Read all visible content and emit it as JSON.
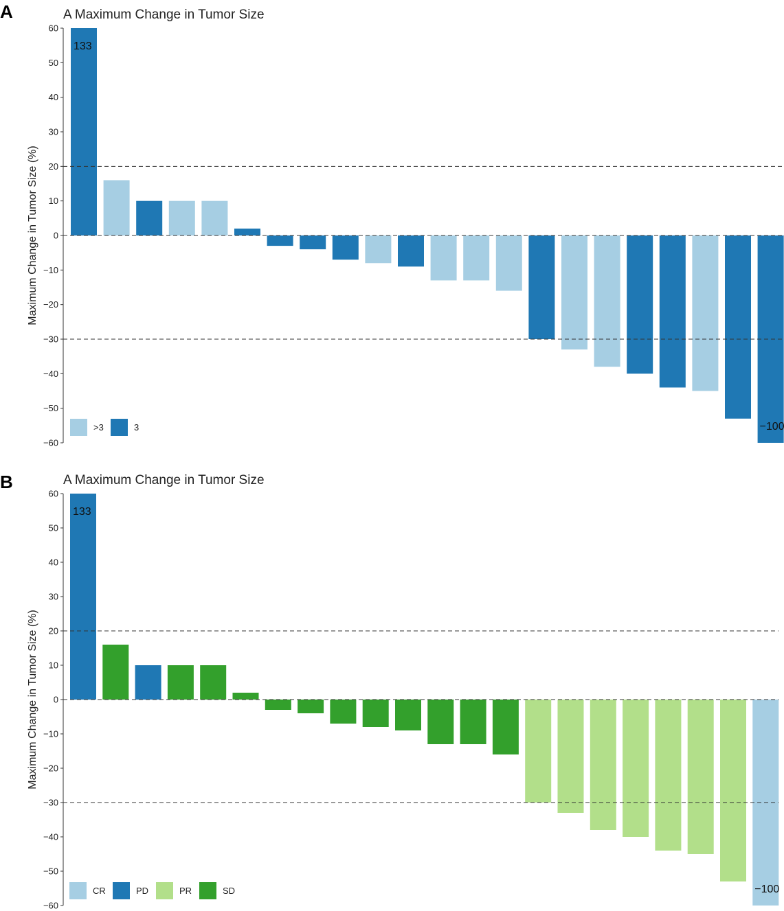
{
  "chart_data": [
    {
      "type": "bar",
      "panel_label": "A",
      "title": "A Maximum Change in Tumor Size",
      "ylabel": "Maximum Change in Tumor Size (%)",
      "xlabel": "",
      "ylim": [
        -60,
        60
      ],
      "yticks": [
        60,
        50,
        40,
        30,
        20,
        10,
        0,
        -10,
        -20,
        -30,
        -40,
        -50,
        -60
      ],
      "reference_lines": [
        20,
        0,
        -30
      ],
      "values": [
        60,
        16,
        10,
        10,
        10,
        2,
        -3,
        -4,
        -7,
        -8,
        -9,
        -13,
        -13,
        -16,
        -30,
        -33,
        -38,
        -40,
        -44,
        -45,
        -53,
        -60
      ],
      "groups": [
        "3",
        ">3",
        "3",
        ">3",
        ">3",
        "3",
        "3",
        "3",
        "3",
        ">3",
        "3",
        ">3",
        ">3",
        ">3",
        "3",
        ">3",
        ">3",
        "3",
        "3",
        ">3",
        "3",
        "3"
      ],
      "legend": [
        {
          "label": ">3",
          "color": "#a6cee3"
        },
        {
          "label": "3",
          "color": "#1f78b4"
        }
      ],
      "annotations": [
        {
          "bar_index": 0,
          "text": "133"
        },
        {
          "bar_index": 21,
          "text": "−100"
        }
      ]
    },
    {
      "type": "bar",
      "panel_label": "B",
      "title": "A Maximum Change in Tumor Size",
      "ylabel": "Maximum Change in Tumor Size (%)",
      "xlabel": "",
      "ylim": [
        -60,
        60
      ],
      "yticks": [
        60,
        50,
        40,
        30,
        20,
        10,
        0,
        -10,
        -20,
        -30,
        -40,
        -50,
        -60
      ],
      "reference_lines": [
        20,
        0,
        -30
      ],
      "values": [
        60,
        16,
        10,
        10,
        10,
        2,
        -3,
        -4,
        -7,
        -8,
        -9,
        -13,
        -13,
        -16,
        -30,
        -33,
        -38,
        -40,
        -44,
        -45,
        -53,
        -60
      ],
      "groups": [
        "PD",
        "SD",
        "PD",
        "SD",
        "SD",
        "SD",
        "SD",
        "SD",
        "SD",
        "SD",
        "SD",
        "SD",
        "SD",
        "SD",
        "PR",
        "PR",
        "PR",
        "PR",
        "PR",
        "PR",
        "PR",
        "CR"
      ],
      "legend": [
        {
          "label": "CR",
          "color": "#a6cee3"
        },
        {
          "label": "PD",
          "color": "#1f78b4"
        },
        {
          "label": "PR",
          "color": "#b2df8a"
        },
        {
          "label": "SD",
          "color": "#33a02c"
        }
      ],
      "annotations": [
        {
          "bar_index": 0,
          "text": "133"
        },
        {
          "bar_index": 21,
          "text": "−100"
        }
      ]
    }
  ]
}
